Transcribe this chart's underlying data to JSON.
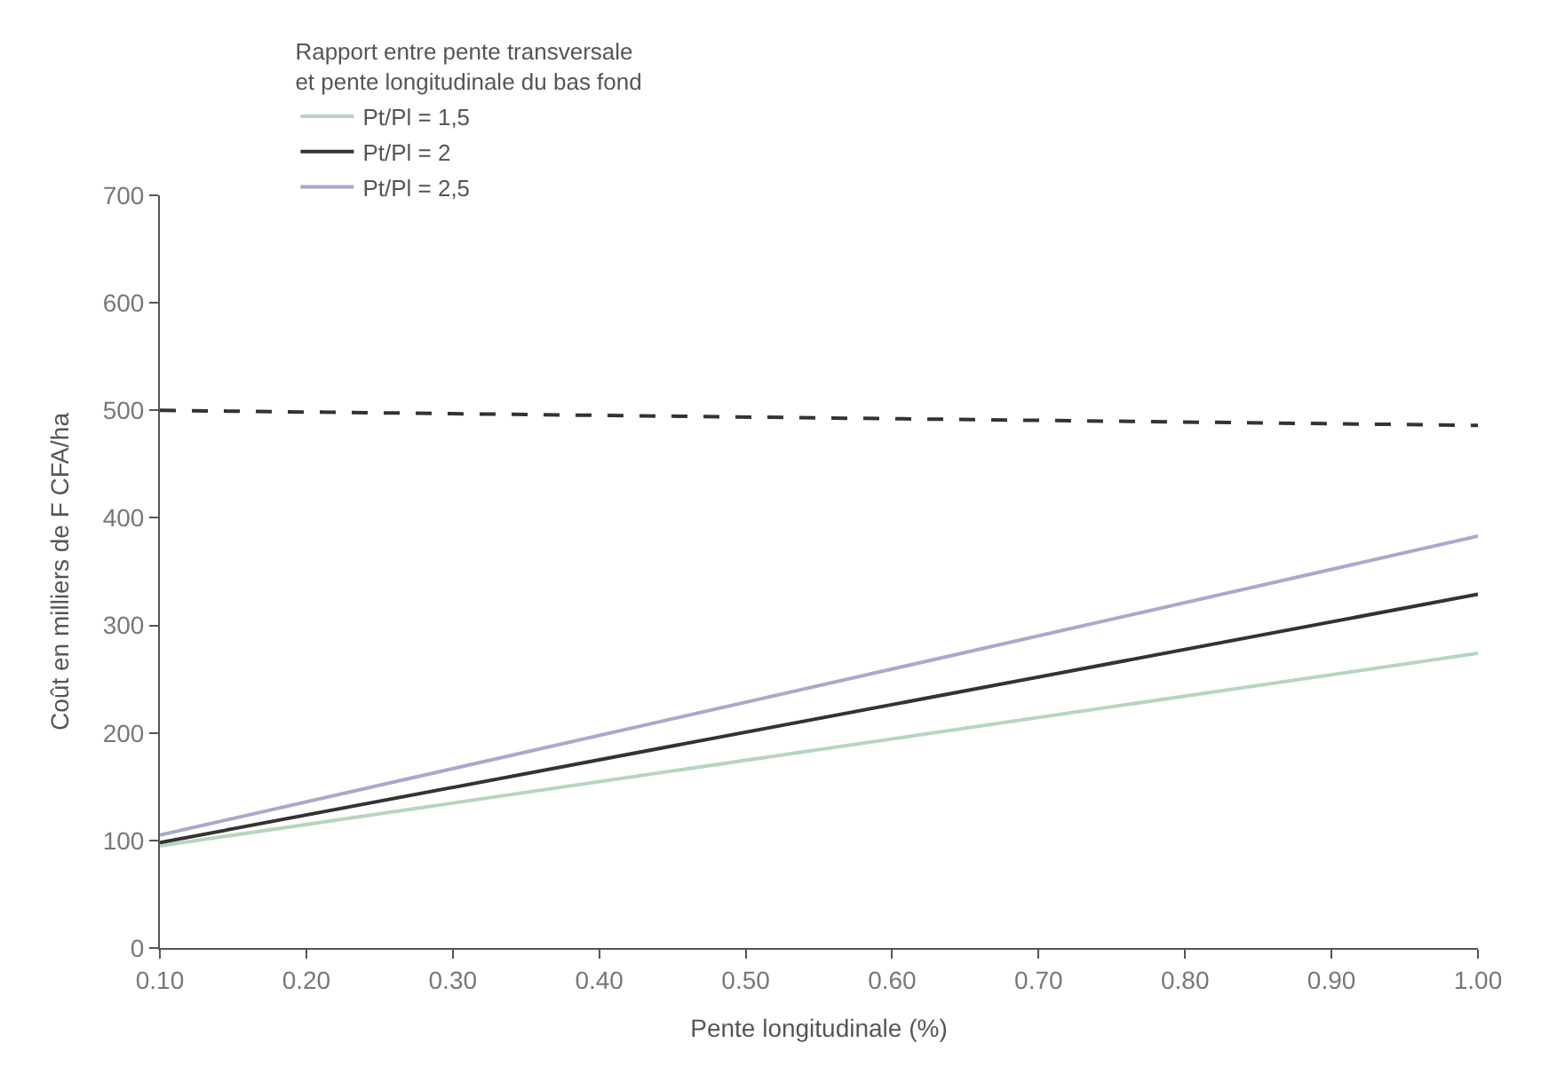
{
  "chart_data": {
    "type": "line",
    "xlabel": "Pente longitudinale (%)",
    "ylabel": "Coût en milliers de F CFA/ha",
    "legend_title": "Rapport entre pente transversale\net pente longitudinale du bas fond",
    "x": [
      0.1,
      1.0
    ],
    "series": [
      {
        "name": "Pt/Pl = 1,5",
        "color": "#b5d6bf",
        "values": [
          95,
          274
        ]
      },
      {
        "name": "Pt/Pl = 2",
        "color": "#333333",
        "values": [
          98,
          329
        ]
      },
      {
        "name": "Pt/Pl = 2,5",
        "color": "#a9a9cc",
        "values": [
          105,
          383
        ]
      },
      {
        "color": "#333333",
        "values": [
          500,
          486
        ],
        "line_style": "dashed"
      }
    ],
    "xlim": [
      0.1,
      1.0
    ],
    "ylim": [
      0,
      700
    ],
    "xticks": [
      {
        "value": 0.1,
        "label": "0.10"
      },
      {
        "value": 0.2,
        "label": "0.20"
      },
      {
        "value": 0.3,
        "label": "0.30"
      },
      {
        "value": 0.4,
        "label": "0.40"
      },
      {
        "value": 0.5,
        "label": "0.50"
      },
      {
        "value": 0.6,
        "label": "0.60"
      },
      {
        "value": 0.7,
        "label": "0.70"
      },
      {
        "value": 0.8,
        "label": "0.80"
      },
      {
        "value": 0.9,
        "label": "0.90"
      },
      {
        "value": 1.0,
        "label": "1.00"
      }
    ],
    "yticks": [
      0,
      100,
      200,
      300,
      400,
      500,
      600,
      700
    ],
    "legend": "top left",
    "marker": "none",
    "line_style": "solid"
  }
}
